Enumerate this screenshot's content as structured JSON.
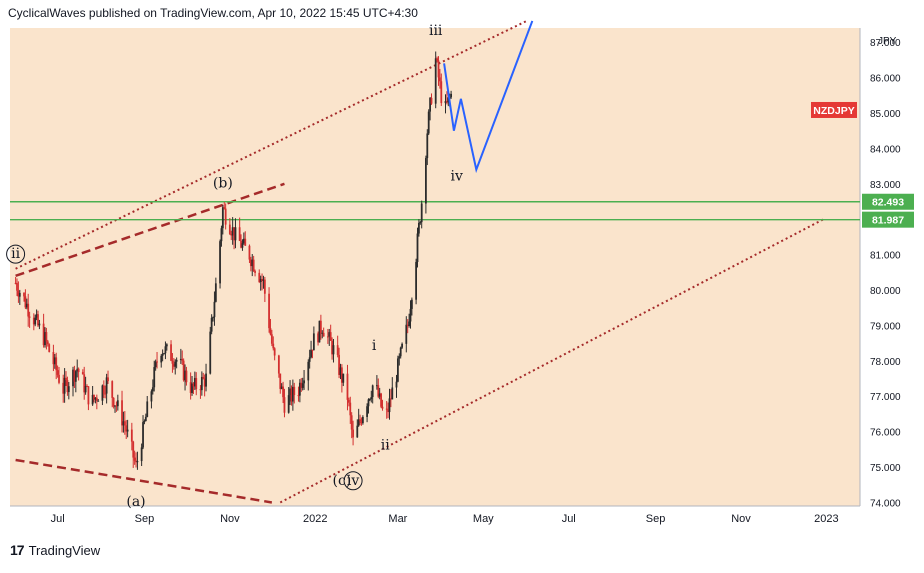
{
  "header": {
    "attribution": "CyclicalWaves published on TradingView.com, Apr 10, 2022 15:45 UTC+4:30"
  },
  "footer": {
    "brand": "TradingView",
    "logo_icon": "tradingview-logo-icon"
  },
  "colors": {
    "background": "#fae4cc",
    "up_candle": "#2b2b2b",
    "down_candle": "#d32f2f",
    "horizontal_lines": "#4caf50",
    "channel": "#a52a2a",
    "projection": "#2962ff",
    "symbol_tag": "#e53935"
  },
  "chart_data": {
    "type": "candlestick",
    "symbol": "NZDJPY",
    "currency_label": "JPY",
    "x_ticks": [
      "Jul",
      "Sep",
      "Nov",
      "2022",
      "Mar",
      "May",
      "Jul",
      "Sep",
      "Nov",
      "2023"
    ],
    "y_ticks": [
      "74.000",
      "75.000",
      "76.000",
      "77.000",
      "78.000",
      "79.000",
      "80.000",
      "81.000",
      "82.000",
      "83.000",
      "84.000",
      "85.000",
      "86.000",
      "87.000"
    ],
    "ylim": [
      73.9,
      87.4
    ],
    "price_path": [
      {
        "date": "2021-06-01",
        "value": 80.2
      },
      {
        "date": "2021-06-10",
        "value": 79.5
      },
      {
        "date": "2021-06-22",
        "value": 78.6
      },
      {
        "date": "2021-07-05",
        "value": 77.2
      },
      {
        "date": "2021-07-15",
        "value": 77.8
      },
      {
        "date": "2021-07-25",
        "value": 76.8
      },
      {
        "date": "2021-08-05",
        "value": 77.4
      },
      {
        "date": "2021-08-18",
        "value": 76.2
      },
      {
        "date": "2021-08-26",
        "value": 75.0
      },
      {
        "date": "2021-09-05",
        "value": 77.0
      },
      {
        "date": "2021-09-12",
        "value": 78.4
      },
      {
        "date": "2021-09-25",
        "value": 78.0
      },
      {
        "date": "2021-10-05",
        "value": 77.2
      },
      {
        "date": "2021-10-15",
        "value": 77.5
      },
      {
        "date": "2021-10-23",
        "value": 80.5
      },
      {
        "date": "2021-10-27",
        "value": 82.3
      },
      {
        "date": "2021-11-05",
        "value": 81.5
      },
      {
        "date": "2021-11-15",
        "value": 81.0
      },
      {
        "date": "2021-11-25",
        "value": 80.2
      },
      {
        "date": "2021-12-02",
        "value": 78.2
      },
      {
        "date": "2021-12-10",
        "value": 76.8
      },
      {
        "date": "2021-12-20",
        "value": 77.2
      },
      {
        "date": "2021-12-30",
        "value": 78.5
      },
      {
        "date": "2022-01-06",
        "value": 79.0
      },
      {
        "date": "2022-01-14",
        "value": 78.3
      },
      {
        "date": "2022-01-24",
        "value": 77.0
      },
      {
        "date": "2022-01-28",
        "value": 75.7
      },
      {
        "date": "2022-02-06",
        "value": 76.8
      },
      {
        "date": "2022-02-12",
        "value": 77.4
      },
      {
        "date": "2022-02-20",
        "value": 76.3
      },
      {
        "date": "2022-03-01",
        "value": 77.8
      },
      {
        "date": "2022-03-08",
        "value": 79.0
      },
      {
        "date": "2022-03-14",
        "value": 81.0
      },
      {
        "date": "2022-03-18",
        "value": 82.5
      },
      {
        "date": "2022-03-22",
        "value": 84.5
      },
      {
        "date": "2022-03-28",
        "value": 86.5
      },
      {
        "date": "2022-04-03",
        "value": 85.0
      },
      {
        "date": "2022-04-08",
        "value": 85.5
      }
    ],
    "horizontal_lines": [
      {
        "value": 82.493,
        "label": "82.493"
      },
      {
        "value": 81.987,
        "label": "81.987"
      }
    ],
    "price_tag": {
      "label": "NZDJPY",
      "value": 85.0
    },
    "projection": [
      {
        "date": "2022-04-03",
        "value": 86.4
      },
      {
        "date": "2022-04-10",
        "value": 84.5
      },
      {
        "date": "2022-04-15",
        "value": 85.4
      },
      {
        "date": "2022-04-26",
        "value": 83.4
      },
      {
        "date": "2022-06-05",
        "value": 87.6
      }
    ],
    "channels": [
      {
        "style": "dotted",
        "points": [
          {
            "date": "2021-06-01",
            "value": 80.6
          },
          {
            "date": "2022-06-01",
            "value": 87.6
          }
        ]
      },
      {
        "style": "dotted",
        "points": [
          {
            "date": "2021-12-07",
            "value": 74.0
          },
          {
            "date": "2022-12-30",
            "value": 82.0
          }
        ]
      },
      {
        "style": "dashed",
        "points": [
          {
            "date": "2021-06-01",
            "value": 80.4
          },
          {
            "date": "2021-12-10",
            "value": 83.0
          }
        ]
      },
      {
        "style": "dashed",
        "points": [
          {
            "date": "2021-06-01",
            "value": 75.2
          },
          {
            "date": "2021-12-01",
            "value": 74.0
          }
        ]
      }
    ],
    "wave_labels": [
      {
        "text": "(b)",
        "date": "2021-10-27",
        "value": 82.9,
        "circled": false
      },
      {
        "text": "ii",
        "date": "2021-06-01",
        "value": 80.9,
        "circled": true
      },
      {
        "text": "(a)",
        "date": "2021-08-26",
        "value": 73.9,
        "circled": false
      },
      {
        "text": "(c)",
        "date": "2022-01-20",
        "value": 74.5,
        "circled": false
      },
      {
        "text": "iv",
        "date": "2022-01-28",
        "value": 74.5,
        "circled": true
      },
      {
        "text": "i",
        "date": "2022-02-12",
        "value": 78.3,
        "circled": false
      },
      {
        "text": "ii",
        "date": "2022-02-20",
        "value": 75.5,
        "circled": false
      },
      {
        "text": "iii",
        "date": "2022-03-28",
        "value": 87.2,
        "circled": false
      },
      {
        "text": "iv",
        "date": "2022-04-12",
        "value": 83.1,
        "circled": false
      }
    ]
  }
}
